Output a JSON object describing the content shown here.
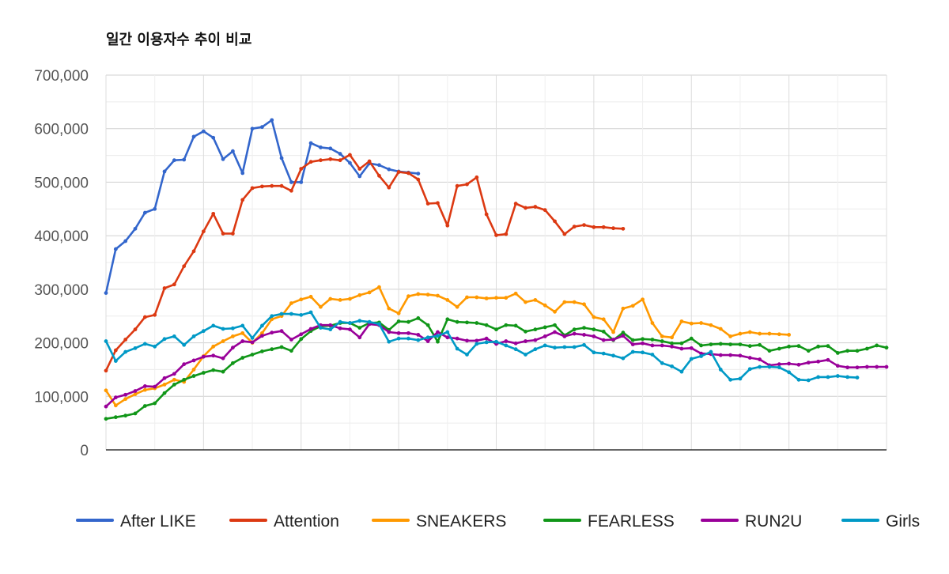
{
  "chart_data": {
    "type": "line",
    "title": "일간 이용자수 추이 비교",
    "xlabel": "",
    "ylabel": "",
    "ylim": [
      0,
      700000
    ],
    "yticks": [
      0,
      100000,
      200000,
      300000,
      400000,
      500000,
      600000,
      700000
    ],
    "ytick_labels": [
      "0",
      "100,000",
      "200,000",
      "300,000",
      "400,000",
      "500,000",
      "600,000",
      "700,000"
    ],
    "x_count": 81,
    "grid": true,
    "legend_position": "bottom",
    "series": [
      {
        "name": "After LIKE",
        "color": "#3366cc",
        "values": [
          293000,
          375000,
          390000,
          413000,
          443000,
          450000,
          520000,
          541000,
          542000,
          585000,
          595000,
          583000,
          543000,
          558000,
          517000,
          600000,
          603000,
          616000,
          545000,
          500000,
          500000,
          573000,
          565000,
          563000,
          553000,
          536000,
          511000,
          535000,
          532000,
          524000,
          520000,
          518000,
          516000
        ]
      },
      {
        "name": "Attention",
        "color": "#dc3912",
        "values": [
          148000,
          186000,
          206000,
          225000,
          248000,
          252000,
          302000,
          309000,
          343000,
          371000,
          408000,
          441000,
          404000,
          404000,
          467000,
          489000,
          492000,
          493000,
          493000,
          484000,
          525000,
          538000,
          541000,
          543000,
          541000,
          551000,
          525000,
          539000,
          512000,
          490000,
          519000,
          517000,
          505000,
          460000,
          461000,
          419000,
          493000,
          496000,
          509000,
          440000,
          401000,
          403000,
          460000,
          452000,
          454000,
          448000,
          427000,
          403000,
          417000,
          420000,
          416000,
          416000,
          414000,
          413000
        ]
      },
      {
        "name": "SNEAKERS",
        "color": "#ff9900",
        "values": [
          111000,
          83000,
          95000,
          104000,
          112000,
          115000,
          122000,
          131000,
          127000,
          150000,
          175000,
          193000,
          203000,
          212000,
          218000,
          200000,
          218000,
          244000,
          250000,
          274000,
          281000,
          286000,
          267000,
          282000,
          280000,
          282000,
          289000,
          294000,
          304000,
          264000,
          255000,
          287000,
          291000,
          290000,
          288000,
          280000,
          267000,
          285000,
          285000,
          283000,
          284000,
          284000,
          292000,
          276000,
          280000,
          270000,
          258000,
          276000,
          276000,
          272000,
          248000,
          244000,
          220000,
          264000,
          269000,
          281000,
          237000,
          212000,
          210000,
          240000,
          236000,
          237000,
          233000,
          226000,
          212000,
          217000,
          220000,
          217000,
          217000,
          216000,
          215000
        ]
      },
      {
        "name": "FEARLESS",
        "color": "#109618",
        "values": [
          58000,
          61000,
          64000,
          68000,
          82000,
          87000,
          106000,
          122000,
          131000,
          138000,
          144000,
          149000,
          146000,
          162000,
          172000,
          178000,
          184000,
          188000,
          192000,
          185000,
          207000,
          222000,
          231000,
          232000,
          237000,
          237000,
          228000,
          237000,
          238000,
          224000,
          240000,
          239000,
          246000,
          233000,
          202000,
          244000,
          239000,
          238000,
          237000,
          233000,
          225000,
          233000,
          232000,
          221000,
          225000,
          229000,
          233000,
          214000,
          225000,
          228000,
          225000,
          221000,
          205000,
          219000,
          205000,
          207000,
          206000,
          203000,
          199000,
          199000,
          208000,
          195000,
          197000,
          198000,
          197000,
          197000,
          194000,
          196000,
          185000,
          189000,
          193000,
          194000,
          185000,
          193000,
          194000,
          181000,
          185000,
          185000,
          189000,
          195000,
          191000
        ]
      },
      {
        "name": "RUN2U",
        "color": "#990099",
        "values": [
          81000,
          98000,
          103000,
          110000,
          119000,
          118000,
          134000,
          142000,
          160000,
          167000,
          174000,
          176000,
          171000,
          191000,
          203000,
          201000,
          213000,
          219000,
          222000,
          206000,
          216000,
          226000,
          233000,
          233000,
          227000,
          225000,
          210000,
          235000,
          233000,
          220000,
          218000,
          218000,
          215000,
          203000,
          220000,
          210000,
          208000,
          204000,
          204000,
          208000,
          198000,
          203000,
          199000,
          203000,
          205000,
          212000,
          220000,
          212000,
          217000,
          215000,
          212000,
          205000,
          206000,
          213000,
          197000,
          199000,
          195000,
          195000,
          193000,
          189000,
          190000,
          180000,
          179000,
          177000,
          177000,
          176000,
          172000,
          169000,
          158000,
          160000,
          161000,
          159000,
          163000,
          165000,
          168000,
          157000,
          154000,
          154000,
          155000,
          155000,
          155000
        ]
      },
      {
        "name": "Girls",
        "color": "#0099c6",
        "values": [
          203000,
          166000,
          183000,
          190000,
          198000,
          193000,
          207000,
          212000,
          196000,
          212000,
          222000,
          232000,
          226000,
          227000,
          232000,
          209000,
          232000,
          250000,
          254000,
          254000,
          252000,
          257000,
          228000,
          225000,
          239000,
          237000,
          241000,
          239000,
          235000,
          202000,
          208000,
          208000,
          205000,
          210000,
          213000,
          220000,
          189000,
          178000,
          198000,
          201000,
          202000,
          195000,
          188000,
          178000,
          188000,
          195000,
          191000,
          192000,
          192000,
          196000,
          182000,
          180000,
          176000,
          171000,
          183000,
          182000,
          178000,
          162000,
          156000,
          146000,
          170000,
          175000,
          183000,
          150000,
          131000,
          133000,
          151000,
          155000,
          155000,
          154000,
          145000,
          131000,
          130000,
          136000,
          136000,
          138000,
          136000,
          135000
        ]
      }
    ]
  }
}
